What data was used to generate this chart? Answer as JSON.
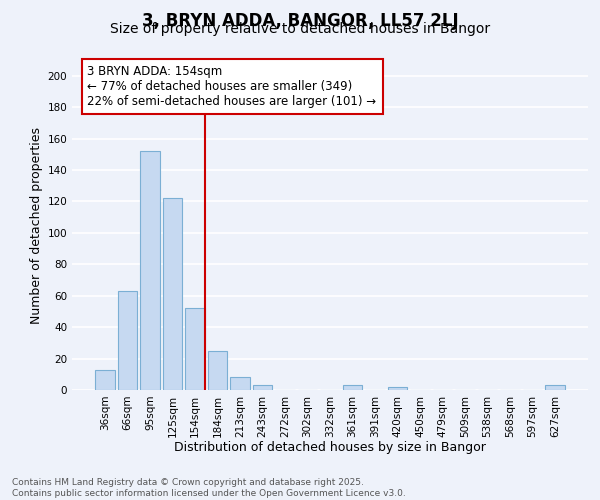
{
  "title": "3, BRYN ADDA, BANGOR, LL57 2LJ",
  "subtitle": "Size of property relative to detached houses in Bangor",
  "xlabel": "Distribution of detached houses by size in Bangor",
  "ylabel": "Number of detached properties",
  "categories": [
    "36sqm",
    "66sqm",
    "95sqm",
    "125sqm",
    "154sqm",
    "184sqm",
    "213sqm",
    "243sqm",
    "272sqm",
    "302sqm",
    "332sqm",
    "361sqm",
    "391sqm",
    "420sqm",
    "450sqm",
    "479sqm",
    "509sqm",
    "538sqm",
    "568sqm",
    "597sqm",
    "627sqm"
  ],
  "values": [
    13,
    63,
    152,
    122,
    52,
    25,
    8,
    3,
    0,
    0,
    0,
    3,
    0,
    2,
    0,
    0,
    0,
    0,
    0,
    0,
    3
  ],
  "bar_color": "#c6d9f1",
  "bar_edge_color": "#7bafd4",
  "vline_index": 4,
  "vline_color": "#cc0000",
  "annotation_title": "3 BRYN ADDA: 154sqm",
  "annotation_line1": "← 77% of detached houses are smaller (349)",
  "annotation_line2": "22% of semi-detached houses are larger (101) →",
  "annotation_box_edge": "#cc0000",
  "annotation_box_bg": "#ffffff",
  "ylim": [
    0,
    210
  ],
  "yticks": [
    0,
    20,
    40,
    60,
    80,
    100,
    120,
    140,
    160,
    180,
    200
  ],
  "footnote1": "Contains HM Land Registry data © Crown copyright and database right 2025.",
  "footnote2": "Contains public sector information licensed under the Open Government Licence v3.0.",
  "bg_color": "#eef2fa",
  "grid_color": "#ffffff",
  "title_fontsize": 12,
  "subtitle_fontsize": 10,
  "axis_label_fontsize": 9,
  "tick_fontsize": 7.5,
  "annotation_fontsize": 8.5,
  "footnote_fontsize": 6.5
}
